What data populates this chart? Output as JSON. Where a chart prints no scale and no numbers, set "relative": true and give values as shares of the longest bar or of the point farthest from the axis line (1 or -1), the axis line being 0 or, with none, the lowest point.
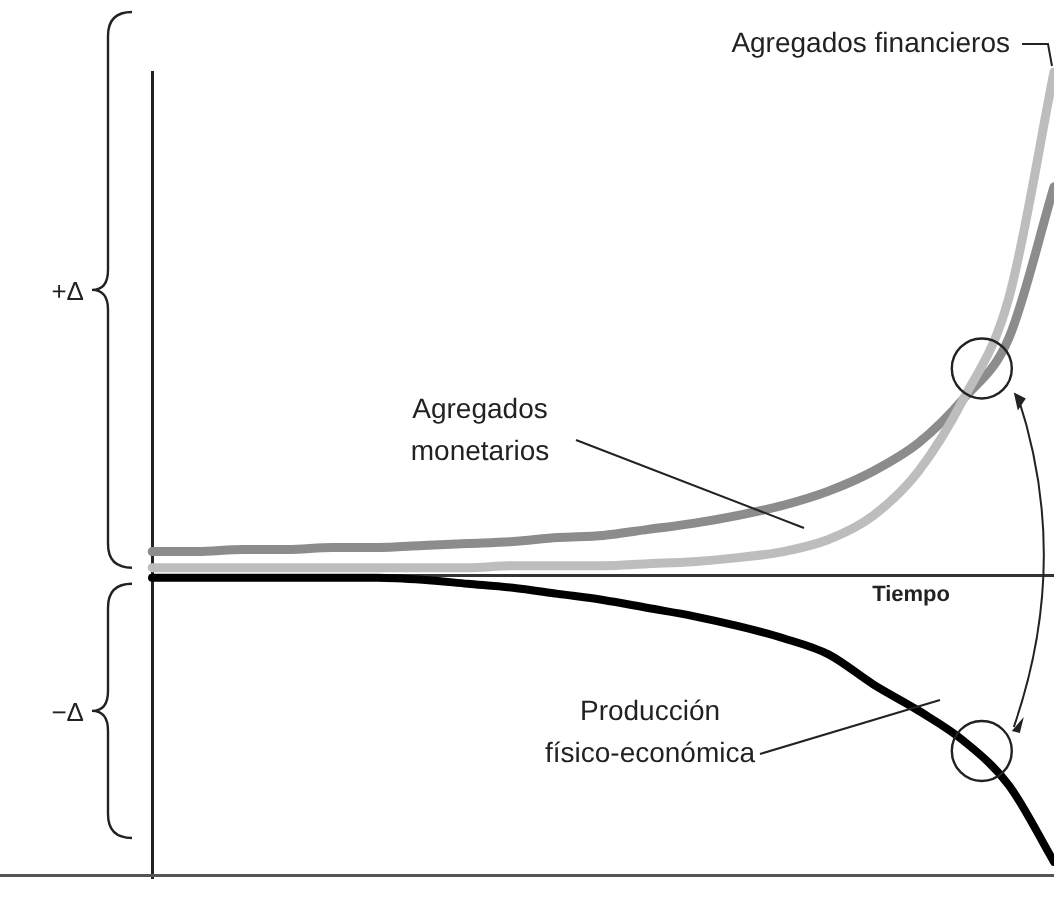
{
  "chart_data": {
    "type": "line",
    "relative": true,
    "xlabel": "Tiempo",
    "annotations": [
      "+Δ",
      "−Δ"
    ],
    "marker": "none",
    "grid": false,
    "legend": false,
    "categories": [
      null,
      null,
      null,
      null,
      null,
      null,
      null,
      null,
      null,
      null,
      null,
      null,
      null,
      null,
      null,
      null,
      null,
      null,
      null,
      null,
      null
    ],
    "series": [
      {
        "name": "Agregados financieros",
        "color": "#bdbdbd",
        "values": [
          0.016,
          0.016,
          0.016,
          0.016,
          0.016,
          0.016,
          0.016,
          0.016,
          0.02,
          0.02,
          0.02,
          0.024,
          0.028,
          0.036,
          0.048,
          0.072,
          0.12,
          0.208,
          0.352,
          0.552,
          1
        ]
      },
      {
        "name": "Agregados monetarios",
        "color": "#8c8c8c",
        "values": [
          0.048,
          0.048,
          0.052,
          0.052,
          0.056,
          0.056,
          0.06,
          0.064,
          0.068,
          0.076,
          0.08,
          0.092,
          0.104,
          0.12,
          0.14,
          0.168,
          0.208,
          0.264,
          0.352,
          0.472,
          0.772
        ]
      },
      {
        "name": "Producción físico-económica",
        "color": "#000000",
        "values": [
          -0.004,
          -0.004,
          -0.004,
          -0.004,
          -0.004,
          -0.004,
          -0.008,
          -0.016,
          -0.024,
          -0.036,
          -0.048,
          -0.064,
          -0.08,
          -0.1,
          -0.124,
          -0.156,
          -0.216,
          -0.268,
          -0.328,
          -0.416,
          -0.568
        ]
      }
    ]
  }
}
